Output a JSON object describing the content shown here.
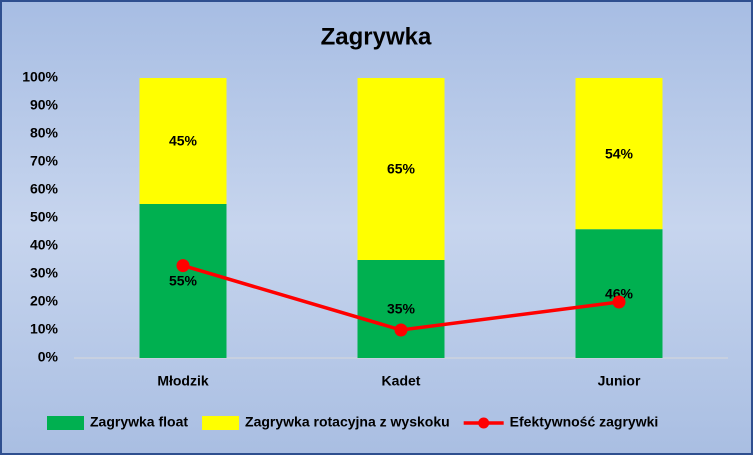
{
  "chart_data": {
    "type": "bar",
    "stacked": true,
    "title": "Zagrywka",
    "categories": [
      "Młodzik",
      "Kadet",
      "Junior"
    ],
    "series": [
      {
        "name": "Zagrywka float",
        "type": "bar",
        "color": "#00b050",
        "values": [
          55,
          35,
          46
        ],
        "value_labels": [
          "55%",
          "35%",
          "46%"
        ]
      },
      {
        "name": "Zagrywka rotacyjna z wyskoku",
        "type": "bar",
        "color": "#ffff00",
        "values": [
          45,
          65,
          54
        ],
        "value_labels": [
          "45%",
          "65%",
          "54%"
        ]
      },
      {
        "name": "Efektywność zagrywki",
        "type": "line",
        "color": "#ff0000",
        "values": [
          33,
          10,
          20
        ]
      }
    ],
    "ylim": [
      0,
      100
    ],
    "yticks": [
      {
        "value": 0,
        "label": "0%"
      },
      {
        "value": 10,
        "label": "10%"
      },
      {
        "value": 20,
        "label": "20%"
      },
      {
        "value": 30,
        "label": "30%"
      },
      {
        "value": 40,
        "label": "40%"
      },
      {
        "value": 50,
        "label": "50%"
      },
      {
        "value": 60,
        "label": "60%"
      },
      {
        "value": 70,
        "label": "70%"
      },
      {
        "value": 80,
        "label": "80%"
      },
      {
        "value": 90,
        "label": "90%"
      },
      {
        "value": 100,
        "label": "100%"
      }
    ],
    "grid": false,
    "legend": "bottom"
  }
}
